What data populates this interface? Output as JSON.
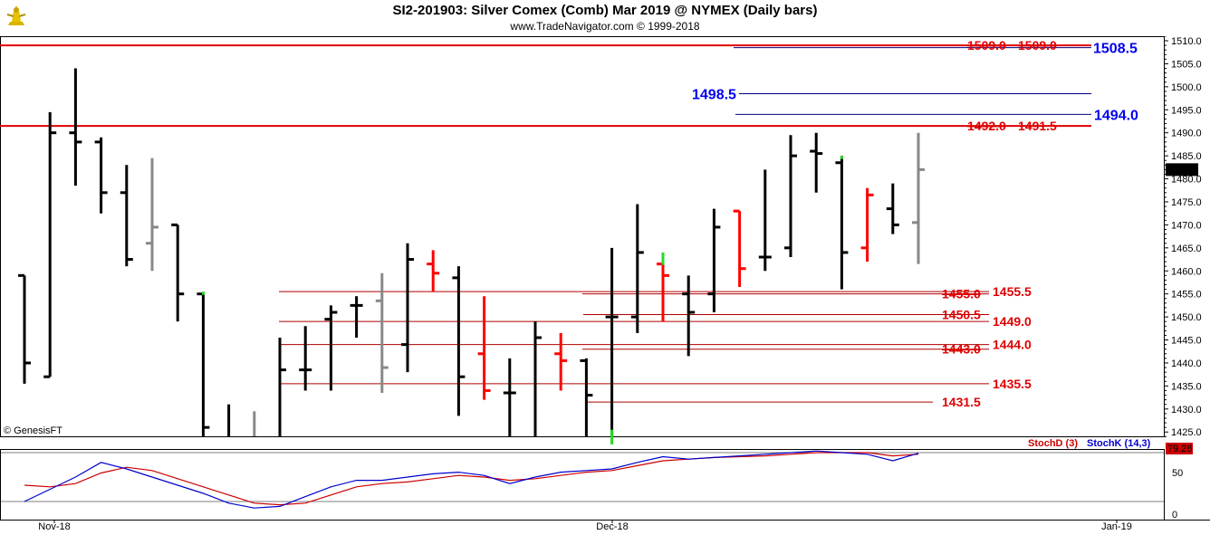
{
  "header": {
    "title": "SI2-201903:  Silver Comex (Comb) Mar 2019 @ NYMEX  (Daily bars)",
    "subtitle": "www.TradeNavigator.com © 1999-2018",
    "logo_icon": "trade-navigator-logo-icon"
  },
  "watermark": "© GenesisFT",
  "colors": {
    "red": "#e00000",
    "dark_red": "#b00000",
    "blue": "#0000ee",
    "navy": "#000080",
    "up_bar": "#000000",
    "gray_bar": "#888888",
    "red_bar": "#ff0000",
    "green_tick": "#22dd22",
    "stoch_d": "#cc0000",
    "stoch_k": "#0000cc"
  },
  "chart_data": {
    "type": "ohlc",
    "ylim": [
      1422.5,
      1512
    ],
    "y_ticks": [
      1425.0,
      1430.0,
      1435.0,
      1440.0,
      1445.0,
      1450.0,
      1455.0,
      1460.0,
      1465.0,
      1470.0,
      1475.0,
      1480.0,
      1485.0,
      1490.0,
      1495.0,
      1500.0,
      1505.0,
      1510.0
    ],
    "x_labels": [
      "Nov-18",
      "Dec-18",
      "Jan-19"
    ],
    "last_price_label": "1482.0",
    "bars": [
      {
        "o": 1459.0,
        "h": 1459.0,
        "l": 1435.5,
        "c": 1440.0,
        "color": "black"
      },
      {
        "o": 1437.0,
        "h": 1494.5,
        "l": 1437.0,
        "c": 1490.0,
        "color": "black"
      },
      {
        "o": 1490.0,
        "h": 1504.0,
        "l": 1478.5,
        "c": 1488.0,
        "color": "black"
      },
      {
        "o": 1488.0,
        "h": 1489.0,
        "l": 1472.5,
        "c": 1477.0,
        "color": "black"
      },
      {
        "o": 1477.0,
        "h": 1483.0,
        "l": 1461.0,
        "c": 1462.5,
        "color": "black"
      },
      {
        "o": 1466.0,
        "h": 1484.5,
        "l": 1460.0,
        "c": 1469.5,
        "color": "gray"
      },
      {
        "o": 1470.0,
        "h": 1470.0,
        "l": 1449.0,
        "c": 1455.0,
        "color": "black"
      },
      {
        "o": 1455.0,
        "h": 1455.0,
        "l": 1422.5,
        "c": 1426.0,
        "color": "black"
      },
      {
        "o": 1424.0,
        "h": 1431.0,
        "l": 1422.5,
        "c": 1424.0,
        "color": "black"
      },
      {
        "o": 1422.5,
        "h": 1429.5,
        "l": 1422.5,
        "c": 1422.5,
        "color": "gray"
      },
      {
        "o": 1422.5,
        "h": 1445.5,
        "l": 1422.5,
        "c": 1438.5,
        "color": "black"
      },
      {
        "o": 1438.5,
        "h": 1448.0,
        "l": 1434.0,
        "c": 1438.5,
        "color": "black"
      },
      {
        "o": 1449.5,
        "h": 1452.5,
        "l": 1434.0,
        "c": 1451.0,
        "color": "black"
      },
      {
        "o": 1452.5,
        "h": 1454.5,
        "l": 1445.5,
        "c": 1452.5,
        "color": "black"
      },
      {
        "o": 1453.5,
        "h": 1459.5,
        "l": 1433.5,
        "c": 1439.0,
        "color": "gray"
      },
      {
        "o": 1444.0,
        "h": 1466.0,
        "l": 1438.0,
        "c": 1462.5,
        "color": "black"
      },
      {
        "o": 1461.5,
        "h": 1464.5,
        "l": 1455.5,
        "c": 1459.5,
        "color": "red"
      },
      {
        "o": 1458.5,
        "h": 1461.0,
        "l": 1428.5,
        "c": 1437.0,
        "color": "black"
      },
      {
        "o": 1442.0,
        "h": 1454.5,
        "l": 1432.0,
        "c": 1434.0,
        "color": "red"
      },
      {
        "o": 1433.5,
        "h": 1441.0,
        "l": 1422.5,
        "c": 1433.5,
        "color": "black"
      },
      {
        "o": 1422.5,
        "h": 1449.0,
        "l": 1422.5,
        "c": 1445.5,
        "color": "black"
      },
      {
        "o": 1442.0,
        "h": 1446.5,
        "l": 1434.0,
        "c": 1440.5,
        "color": "red"
      },
      {
        "o": 1440.5,
        "h": 1441.0,
        "l": 1422.5,
        "c": 1433.0,
        "color": "black"
      },
      {
        "o": 1450.0,
        "h": 1465.0,
        "l": 1422.5,
        "c": 1450.0,
        "color": "black"
      },
      {
        "o": 1450.0,
        "h": 1474.5,
        "l": 1446.5,
        "c": 1464.0,
        "color": "black"
      },
      {
        "o": 1461.5,
        "h": 1462.0,
        "l": 1449.0,
        "c": 1459.0,
        "color": "red"
      },
      {
        "o": 1455.0,
        "h": 1459.0,
        "l": 1441.5,
        "c": 1451.0,
        "color": "black"
      },
      {
        "o": 1455.0,
        "h": 1473.5,
        "l": 1451.0,
        "c": 1469.5,
        "color": "black"
      },
      {
        "o": 1473.0,
        "h": 1473.0,
        "l": 1456.5,
        "c": 1460.5,
        "color": "red"
      },
      {
        "o": 1463.0,
        "h": 1482.0,
        "l": 1460.0,
        "c": 1463.0,
        "color": "black"
      },
      {
        "o": 1465.0,
        "h": 1489.5,
        "l": 1463.0,
        "c": 1485.0,
        "color": "black"
      },
      {
        "o": 1486.0,
        "h": 1490.0,
        "l": 1477.0,
        "c": 1485.5,
        "color": "black"
      },
      {
        "o": 1483.5,
        "h": 1485.0,
        "l": 1456.0,
        "c": 1464.0,
        "color": "black"
      },
      {
        "o": 1465.0,
        "h": 1478.0,
        "l": 1462.0,
        "c": 1476.5,
        "color": "red"
      },
      {
        "o": 1473.5,
        "h": 1479.0,
        "l": 1468.0,
        "c": 1470.0,
        "color": "black"
      },
      {
        "o": 1470.5,
        "h": 1490.0,
        "l": 1461.5,
        "c": 1482.0,
        "color": "gray"
      }
    ],
    "levels": [
      {
        "kind": "red-line",
        "value": 1509.0
      },
      {
        "kind": "red-line",
        "value": 1491.5
      },
      {
        "kind": "navy-line",
        "value": 1508.5
      },
      {
        "kind": "navy-line",
        "value": 1498.5
      },
      {
        "kind": "navy-line",
        "value": 1494.0
      },
      {
        "kind": "thin-red",
        "value": 1455.5
      },
      {
        "kind": "thin-red",
        "value": 1455.0
      },
      {
        "kind": "thin-red",
        "value": 1450.5
      },
      {
        "kind": "thin-red",
        "value": 1449.0
      },
      {
        "kind": "thin-red",
        "value": 1444.0
      },
      {
        "kind": "thin-red",
        "value": 1443.0
      },
      {
        "kind": "thin-red",
        "value": 1435.5
      },
      {
        "kind": "thin-red",
        "value": 1431.5
      }
    ],
    "labels": [
      {
        "text": "1509.0",
        "color": "strike-red"
      },
      {
        "text": "1509.0",
        "color": "strike-red"
      },
      {
        "text": "1508.5",
        "color": "blue"
      },
      {
        "text": "1498.5",
        "color": "blue"
      },
      {
        "text": "1494.0",
        "color": "blue"
      },
      {
        "text": "1492.0",
        "color": "strike-red"
      },
      {
        "text": "1491.5",
        "color": "red"
      },
      {
        "text": "1455.0",
        "color": "strike-red"
      },
      {
        "text": "1455.5",
        "color": "red"
      },
      {
        "text": "1450.5",
        "color": "red"
      },
      {
        "text": "1449.0",
        "color": "red"
      },
      {
        "text": "1443.0",
        "color": "strike-red"
      },
      {
        "text": "1444.0",
        "color": "red"
      },
      {
        "text": "1435.5",
        "color": "red"
      },
      {
        "text": "1431.5",
        "color": "red"
      }
    ],
    "stochastic": {
      "legend_d": "StochD (3)",
      "legend_k": "StochK (14,3)",
      "last_value_label": "79.26",
      "y_ticks": [
        "50",
        "0"
      ],
      "ylim": [
        0,
        100
      ],
      "stoch_k": [
        20,
        35,
        50,
        68,
        60,
        50,
        40,
        30,
        18,
        12,
        14,
        26,
        38,
        46,
        46,
        50,
        54,
        56,
        52,
        42,
        50,
        56,
        58,
        60,
        68,
        75,
        72,
        74,
        76,
        78,
        80,
        82,
        80,
        78,
        70,
        79.26
      ],
      "stoch_d": [
        40,
        38,
        42,
        55,
        62,
        58,
        48,
        38,
        28,
        18,
        16,
        18,
        28,
        38,
        42,
        44,
        48,
        52,
        50,
        46,
        48,
        52,
        56,
        58,
        64,
        70,
        72,
        74,
        75,
        76,
        78,
        80,
        80,
        80,
        76,
        78
      ]
    }
  }
}
